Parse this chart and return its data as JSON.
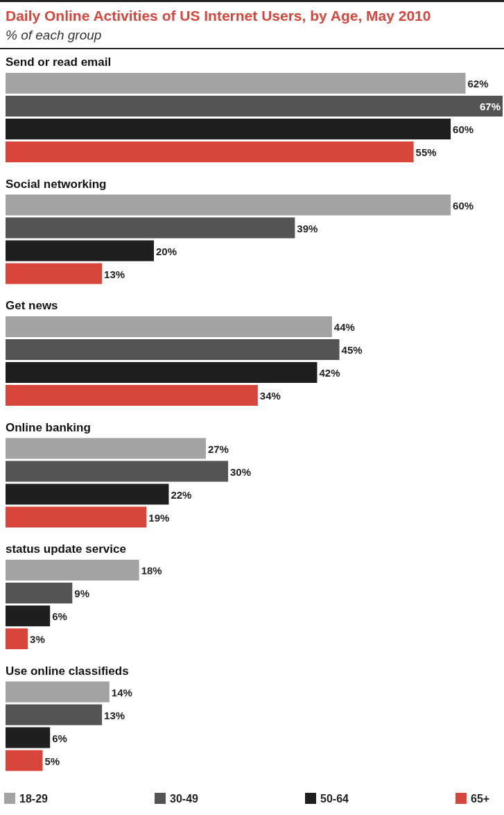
{
  "chart_data": {
    "type": "bar",
    "orientation": "horizontal",
    "title": "Daily Online Activities of US Internet Users, by Age, May 2010",
    "subtitle": "% of each group",
    "categories": [
      "Send or read email",
      "Social networking",
      "Get news",
      "Online banking",
      "status update service",
      "Use online classifieds"
    ],
    "series": [
      {
        "name": "18-29",
        "color": "#a3a3a3",
        "values": [
          62,
          60,
          44,
          27,
          18,
          14
        ],
        "value_labels": [
          "62%",
          "60%",
          "44%",
          "27%",
          "18%",
          "14%"
        ]
      },
      {
        "name": "30-49",
        "color": "#545454",
        "values": [
          67,
          39,
          45,
          30,
          9,
          13
        ],
        "value_labels": [
          "67%",
          "39%",
          "45%",
          "30%",
          "9%",
          "13%"
        ]
      },
      {
        "name": "50-64",
        "color": "#1f1f1f",
        "values": [
          60,
          20,
          42,
          22,
          6,
          6
        ],
        "value_labels": [
          "60%",
          "20%",
          "42%",
          "22%",
          "6%",
          "6%"
        ]
      },
      {
        "name": "65+",
        "color": "#d8453b",
        "values": [
          55,
          13,
          34,
          19,
          3,
          5
        ],
        "value_labels": [
          "55%",
          "13%",
          "34%",
          "19%",
          "3%",
          "5%"
        ]
      }
    ],
    "legend": "bottom"
  }
}
